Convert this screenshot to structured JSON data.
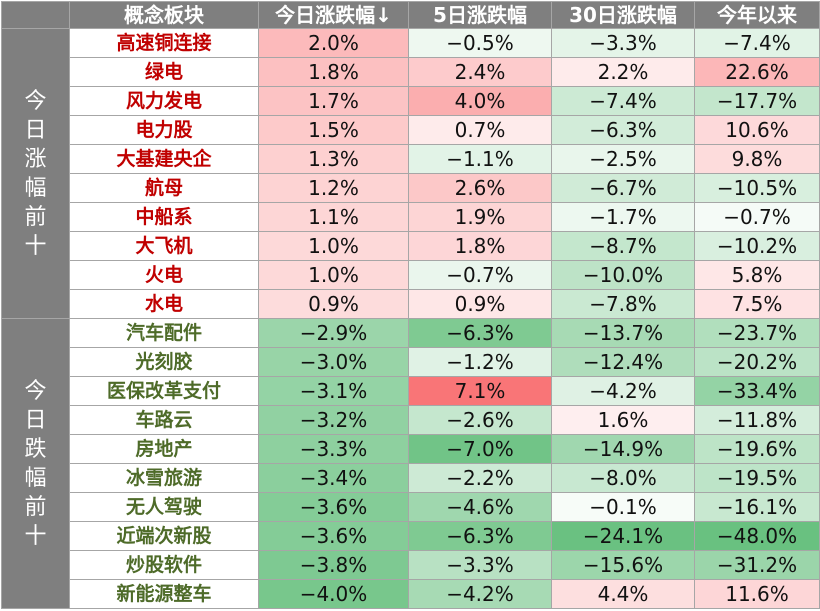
{
  "header": {
    "concept": "概念板块",
    "today": "今日涨跌幅↓",
    "d5": "5日涨跌幅",
    "d30": "30日涨跌幅",
    "ytd": "今年以来"
  },
  "groups": {
    "top": "今日涨幅前十",
    "bottom": "今日跌幅前十"
  },
  "rows": [
    {
      "name": "高速铜连接",
      "today": "2.0%",
      "d5": "−0.5%",
      "d30": "−3.3%",
      "ytd": "−7.4%"
    },
    {
      "name": "绿电",
      "today": "1.8%",
      "d5": "2.4%",
      "d30": "2.2%",
      "ytd": "22.6%"
    },
    {
      "name": "风力发电",
      "today": "1.7%",
      "d5": "4.0%",
      "d30": "−7.4%",
      "ytd": "−17.7%"
    },
    {
      "name": "电力股",
      "today": "1.5%",
      "d5": "0.7%",
      "d30": "−6.3%",
      "ytd": "10.6%"
    },
    {
      "name": "大基建央企",
      "today": "1.3%",
      "d5": "−1.1%",
      "d30": "−2.5%",
      "ytd": "9.8%"
    },
    {
      "name": "航母",
      "today": "1.2%",
      "d5": "2.6%",
      "d30": "−6.7%",
      "ytd": "−10.5%"
    },
    {
      "name": "中船系",
      "today": "1.1%",
      "d5": "1.9%",
      "d30": "−1.7%",
      "ytd": "−0.7%"
    },
    {
      "name": "大飞机",
      "today": "1.0%",
      "d5": "1.8%",
      "d30": "−8.7%",
      "ytd": "−10.2%"
    },
    {
      "name": "火电",
      "today": "1.0%",
      "d5": "−0.7%",
      "d30": "−10.0%",
      "ytd": "5.8%"
    },
    {
      "name": "水电",
      "today": "0.9%",
      "d5": "0.9%",
      "d30": "−7.8%",
      "ytd": "7.5%"
    },
    {
      "name": "汽车配件",
      "today": "−2.9%",
      "d5": "−6.3%",
      "d30": "−13.7%",
      "ytd": "−23.7%"
    },
    {
      "name": "光刻胶",
      "today": "−3.0%",
      "d5": "−1.2%",
      "d30": "−12.4%",
      "ytd": "−20.2%"
    },
    {
      "name": "医保改革支付",
      "today": "−3.1%",
      "d5": "7.1%",
      "d30": "−4.2%",
      "ytd": "−33.4%"
    },
    {
      "name": "车路云",
      "today": "−3.2%",
      "d5": "−2.6%",
      "d30": "1.6%",
      "ytd": "−11.8%"
    },
    {
      "name": "房地产",
      "today": "−3.3%",
      "d5": "−7.0%",
      "d30": "−14.9%",
      "ytd": "−19.6%"
    },
    {
      "name": "冰雪旅游",
      "today": "−3.4%",
      "d5": "−2.2%",
      "d30": "−8.0%",
      "ytd": "−19.5%"
    },
    {
      "name": "无人驾驶",
      "today": "−3.6%",
      "d5": "−4.6%",
      "d30": "−0.1%",
      "ytd": "−16.1%"
    },
    {
      "name": "近端次新股",
      "today": "−3.6%",
      "d5": "−6.3%",
      "d30": "−24.1%",
      "ytd": "−48.0%"
    },
    {
      "name": "炒股软件",
      "today": "−3.8%",
      "d5": "−3.3%",
      "d30": "−15.6%",
      "ytd": "−31.2%"
    },
    {
      "name": "新能源整车",
      "today": "−4.0%",
      "d5": "−4.2%",
      "d30": "4.4%",
      "ytd": "11.6%"
    }
  ],
  "colors": {
    "header_bg": "#7f7f7f",
    "top_name": "#c00000",
    "bottom_name": "#4e6b29",
    "positive_scale": "#f8696b",
    "negative_scale": "#63be7b"
  }
}
